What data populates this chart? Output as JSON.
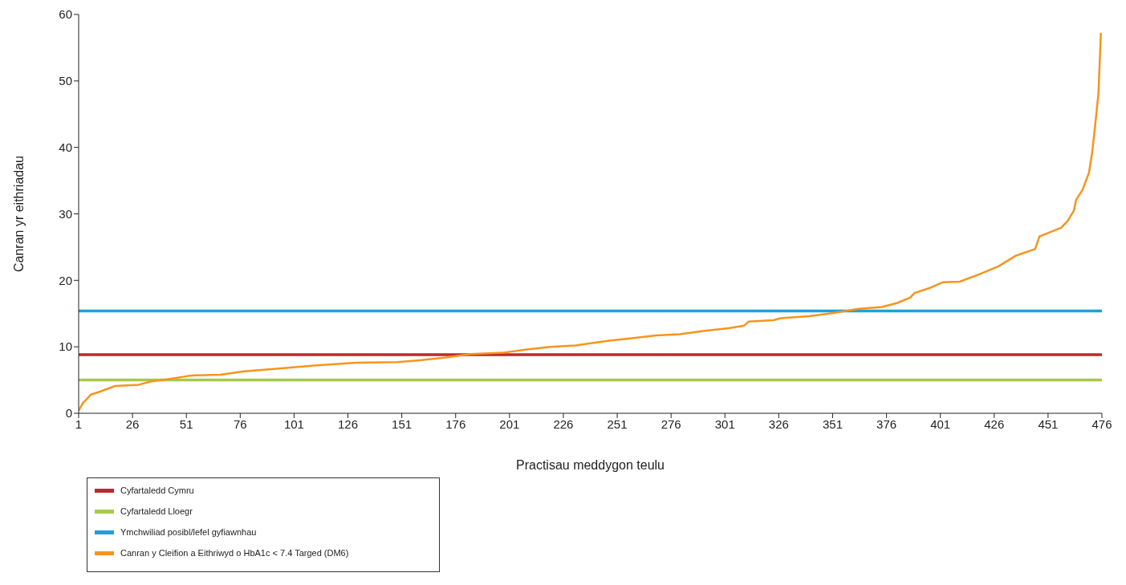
{
  "chart_data": {
    "type": "line",
    "xlabel": "Practisau meddygon teulu",
    "ylabel": "Canran yr eithriadau",
    "xlim": [
      1,
      476
    ],
    "xticks": [
      1,
      26,
      51,
      76,
      101,
      126,
      151,
      176,
      201,
      226,
      251,
      276,
      301,
      326,
      351,
      376,
      401,
      426,
      451,
      476
    ],
    "ylim": [
      0,
      60
    ],
    "yticks": [
      0,
      10,
      20,
      30,
      40,
      50,
      60
    ],
    "grid": false,
    "legend": "bottom left",
    "marker": "none",
    "line_style": "solid",
    "series": [
      {
        "name": "Cyfartaledd Cymru",
        "color": "#c0272d",
        "x": [
          1,
          476
        ],
        "values": [
          8.8,
          8.8
        ]
      },
      {
        "name": "Cyfartaledd Lloegr",
        "color": "#a6c94a",
        "x": [
          1,
          476
        ],
        "values": [
          5.0,
          5.0
        ]
      },
      {
        "name": "Ymchwiliad posibl/lefel gyfiawnhau",
        "color": "#1ba1db",
        "x": [
          1,
          476
        ],
        "values": [
          15.4,
          15.4
        ]
      },
      {
        "name": "Canran y Cleifion a Eithriwyd o HbA1c < 7.4 Targed (DM6)",
        "color": "#f7941d",
        "x": [
          1,
          2.9,
          6.6,
          10.4,
          17.9,
          23.5,
          29,
          34.7,
          42,
          51.6,
          55,
          66.6,
          77.8,
          92.8,
          111.6,
          130,
          149,
          160,
          171.5,
          182.8,
          197.8,
          209,
          220,
          231.6,
          246.6,
          257.8,
          269,
          280,
          291.6,
          302.8,
          310,
          312,
          323.5,
          327,
          340,
          351.5,
          362.6,
          374,
          381,
          387,
          389,
          396.5,
          402,
          410,
          419,
          428,
          436,
          445,
          447,
          457,
          460,
          463,
          464,
          467,
          470,
          471.5,
          472.8,
          474.4,
          475.5,
          476
        ],
        "values": [
          0.4,
          1.5,
          2.8,
          3.2,
          4.1,
          4.2,
          4.3,
          4.8,
          5.1,
          5.6,
          5.7,
          5.8,
          6.3,
          6.7,
          7.2,
          7.6,
          7.7,
          8.0,
          8.4,
          8.9,
          9.1,
          9.6,
          10.0,
          10.2,
          10.9,
          11.3,
          11.7,
          11.9,
          12.4,
          12.8,
          13.2,
          13.8,
          14.0,
          14.3,
          14.6,
          15.1,
          15.7,
          16.0,
          16.6,
          17.4,
          18.1,
          18.9,
          19.7,
          19.8,
          20.9,
          22.1,
          23.7,
          24.7,
          26.6,
          27.9,
          28.9,
          30.5,
          32.1,
          33.6,
          36.2,
          39.3,
          43.1,
          48.2,
          57.1,
          57.0
        ]
      }
    ]
  }
}
